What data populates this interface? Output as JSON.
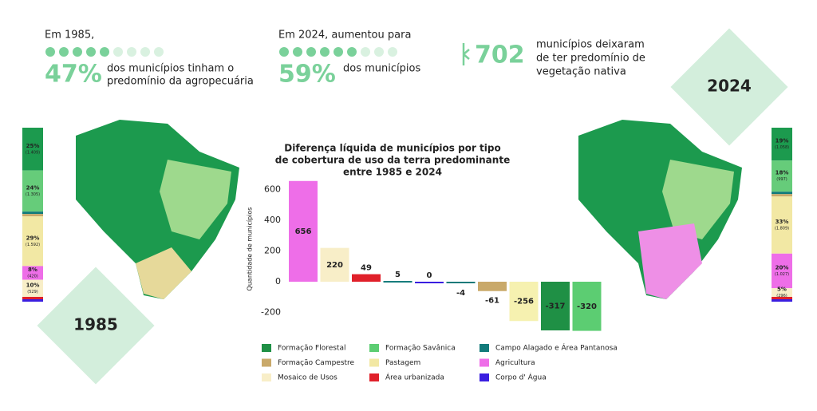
{
  "header": {
    "left": {
      "lead": "Em 1985,",
      "big": "47%",
      "text": [
        "dos municípios tinham o",
        "predomínio da agropecuária"
      ]
    },
    "middle": {
      "lead": "Em 2024, aumentou para",
      "big": "59%",
      "text": [
        "dos municípios"
      ]
    },
    "right": {
      "big": "702",
      "text": [
        "municípios deixaram",
        "de ter predomínio de",
        "vegetação nativa"
      ]
    }
  },
  "years": {
    "left": "1985",
    "right": "2024"
  },
  "side_bars": [
    {
      "segments": [
        {
          "color": "#1c9a4e",
          "percent": 25,
          "percent_label": "25%",
          "count": 1409,
          "count_label": "(1.409)"
        },
        {
          "color": "#66cc7a",
          "percent": 24,
          "percent_label": "24%",
          "count": 1305,
          "count_label": "(1.305)"
        },
        {
          "color": "#f2e8a4",
          "percent": 29,
          "percent_label": "29%",
          "count": 1592,
          "count_label": "(1.592)"
        },
        {
          "color": "#ee6ee8",
          "percent": 8,
          "percent_label": "8%",
          "count": 420,
          "count_label": "(420)"
        },
        {
          "color": "#f8eec8",
          "percent": 10,
          "percent_label": "10%",
          "count": 529,
          "count_label": "(529)"
        }
      ]
    },
    {
      "segments": [
        {
          "color": "#1c9a4e",
          "percent": 19,
          "percent_label": "19%",
          "count": 1058,
          "count_label": "(1.058)"
        },
        {
          "color": "#66cc7a",
          "percent": 18,
          "percent_label": "18%",
          "count": 997,
          "count_label": "(997)"
        },
        {
          "color": "#f2e8a4",
          "percent": 33,
          "percent_label": "33%",
          "count": 1809,
          "count_label": "(1.809)"
        },
        {
          "color": "#ee6ee8",
          "percent": 20,
          "percent_label": "20%",
          "count": 1027,
          "count_label": "(1.027)"
        },
        {
          "color": "#f8eec8",
          "percent": 5,
          "percent_label": "5%",
          "count": 296,
          "count_label": "(296)"
        }
      ]
    }
  ],
  "chart_data": {
    "type": "bar",
    "title": [
      "Diferença líquida de municípios por tipo",
      "de cobertura de uso da terra predominante",
      "entre 1985 e 2024"
    ],
    "y_label": "Quantidade de municípios",
    "categories": [
      null,
      null,
      null,
      null,
      null,
      null,
      null,
      null,
      null,
      null
    ],
    "values": [
      656,
      220,
      49,
      5,
      0,
      -4,
      -61,
      -256,
      -317,
      -320
    ],
    "colors": [
      "#ee6ee8",
      "#f8eec8",
      "#e0202a",
      "#127a7a",
      "#3a1ee0",
      "#127a7a",
      "#c9a96a",
      "#f6f1b0",
      "#1f9045",
      "#5ccd72"
    ],
    "ylim": [
      -330,
      660
    ],
    "yticks": [
      -200,
      0,
      200,
      400,
      600
    ],
    "legend": [
      {
        "name": "Formação Florestal",
        "color": "#1f9045"
      },
      {
        "name": "Formação Savânica",
        "color": "#5ccd72"
      },
      {
        "name": "Campo Alagado e Área Pantanosa",
        "color": "#127a7a"
      },
      {
        "name": "Formação Campestre",
        "color": "#c9a96a"
      },
      {
        "name": "Pastagem",
        "color": "#f2e8a4"
      },
      {
        "name": "Agricultura",
        "color": "#ee6ee8"
      },
      {
        "name": "Mosaico de Usos",
        "color": "#f8eec8"
      },
      {
        "name": "Área urbanizada",
        "color": "#e0202a"
      },
      {
        "name": "Corpo d' Água",
        "color": "#3a1ee0"
      }
    ]
  }
}
